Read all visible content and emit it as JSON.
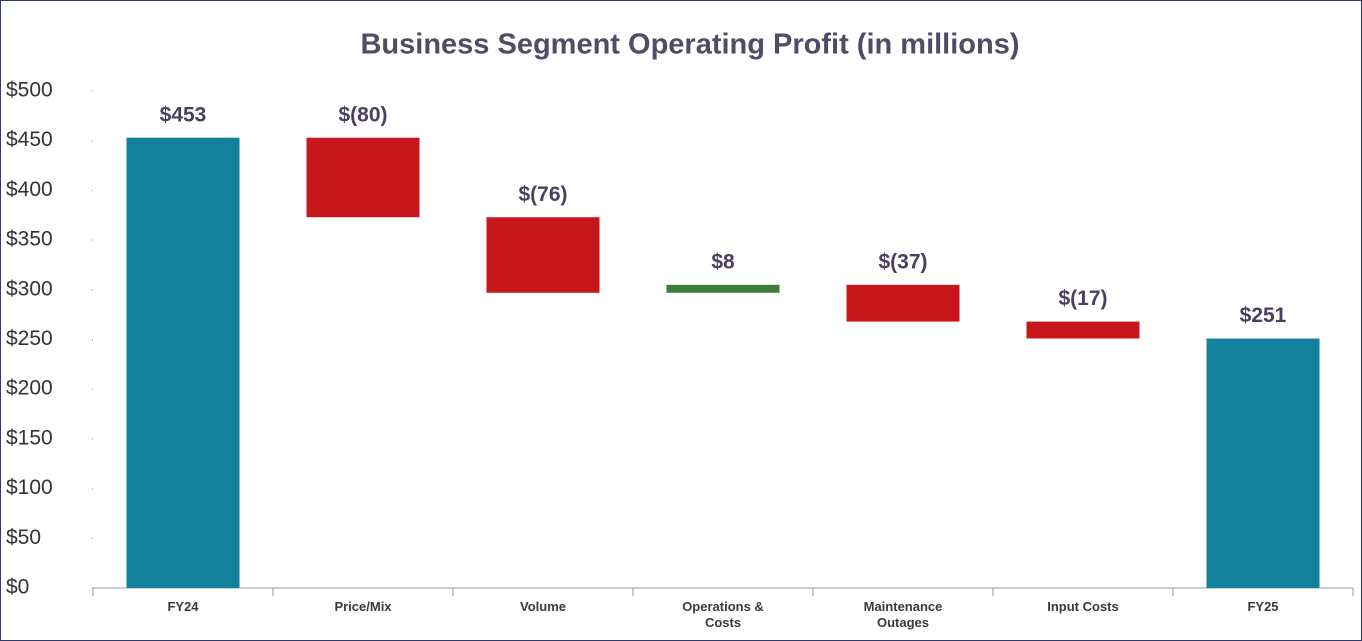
{
  "chart_data": {
    "type": "waterfall",
    "title": "Business Segment Operating Profit (in millions)",
    "categories": [
      "FY24",
      "Price/Mix",
      "Volume",
      "Operations & Costs",
      "Maintenance Outages",
      "Input Costs",
      "FY25"
    ],
    "values": [
      453,
      -80,
      -76,
      8,
      -37,
      -17,
      251
    ],
    "value_labels": [
      "$453",
      "$(80)",
      "$(76)",
      "$8",
      "$(37)",
      "$(17)",
      "$251"
    ],
    "totals": [
      true,
      false,
      false,
      false,
      false,
      false,
      true
    ],
    "colors": {
      "total": "#13819b",
      "decrease": "#c8161d",
      "increase": "#3c7d3c"
    },
    "ylim": [
      0,
      500
    ],
    "yticks": [
      {
        "value": 0,
        "label": "$0"
      },
      {
        "value": 50,
        "label": "$50"
      },
      {
        "value": 100,
        "label": "$100"
      },
      {
        "value": 150,
        "label": "$150"
      },
      {
        "value": 200,
        "label": "$200"
      },
      {
        "value": 250,
        "label": "$250"
      },
      {
        "value": 300,
        "label": "$300"
      },
      {
        "value": 350,
        "label": "$350"
      },
      {
        "value": 400,
        "label": "$400"
      },
      {
        "value": 450,
        "label": "$450"
      },
      {
        "value": 500,
        "label": "$500"
      }
    ],
    "grid": false
  }
}
